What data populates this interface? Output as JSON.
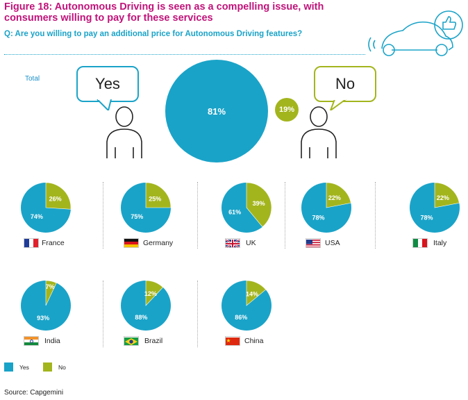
{
  "header": {
    "title": "Figure 18: Autonomous Driving is seen as a compelling issue, with consumers willing to pay for these services",
    "question": "Q: Are you willing to pay an additional price for Autonomous Driving features?"
  },
  "total": {
    "label": "Total",
    "yes_bubble": "Yes",
    "no_bubble": "No",
    "yes_value": "81%",
    "no_value": "19%"
  },
  "legend": {
    "yes": "Yes",
    "no": "No"
  },
  "source": "Source: Capgemini",
  "colors": {
    "yes": "#1aa3c8",
    "no": "#a3b51d",
    "title": "#c0137a"
  },
  "chart_data": {
    "type": "pie",
    "series_names": [
      "Yes",
      "No"
    ],
    "total": {
      "yes": 81,
      "no": 19
    },
    "countries": [
      {
        "name": "France",
        "yes": 74,
        "no": 26,
        "yes_label": "74%",
        "no_label": "26%",
        "flag": "france-flag"
      },
      {
        "name": "Germany",
        "yes": 75,
        "no": 25,
        "yes_label": "75%",
        "no_label": "25%",
        "flag": "germany-flag"
      },
      {
        "name": "UK",
        "yes": 61,
        "no": 39,
        "yes_label": "61%",
        "no_label": "39%",
        "flag": "uk-flag"
      },
      {
        "name": "USA",
        "yes": 78,
        "no": 22,
        "yes_label": "78%",
        "no_label": "22%",
        "flag": "usa-flag"
      },
      {
        "name": "Italy",
        "yes": 78,
        "no": 22,
        "yes_label": "78%",
        "no_label": "22%",
        "flag": "italy-flag"
      },
      {
        "name": "India",
        "yes": 93,
        "no": 7,
        "yes_label": "93%",
        "no_label": "7%",
        "flag": "india-flag"
      },
      {
        "name": "Brazil",
        "yes": 88,
        "no": 12,
        "yes_label": "88%",
        "no_label": "12%",
        "flag": "brazil-flag"
      },
      {
        "name": "China",
        "yes": 86,
        "no": 14,
        "yes_label": "86%",
        "no_label": "14%",
        "flag": "china-flag"
      }
    ]
  }
}
